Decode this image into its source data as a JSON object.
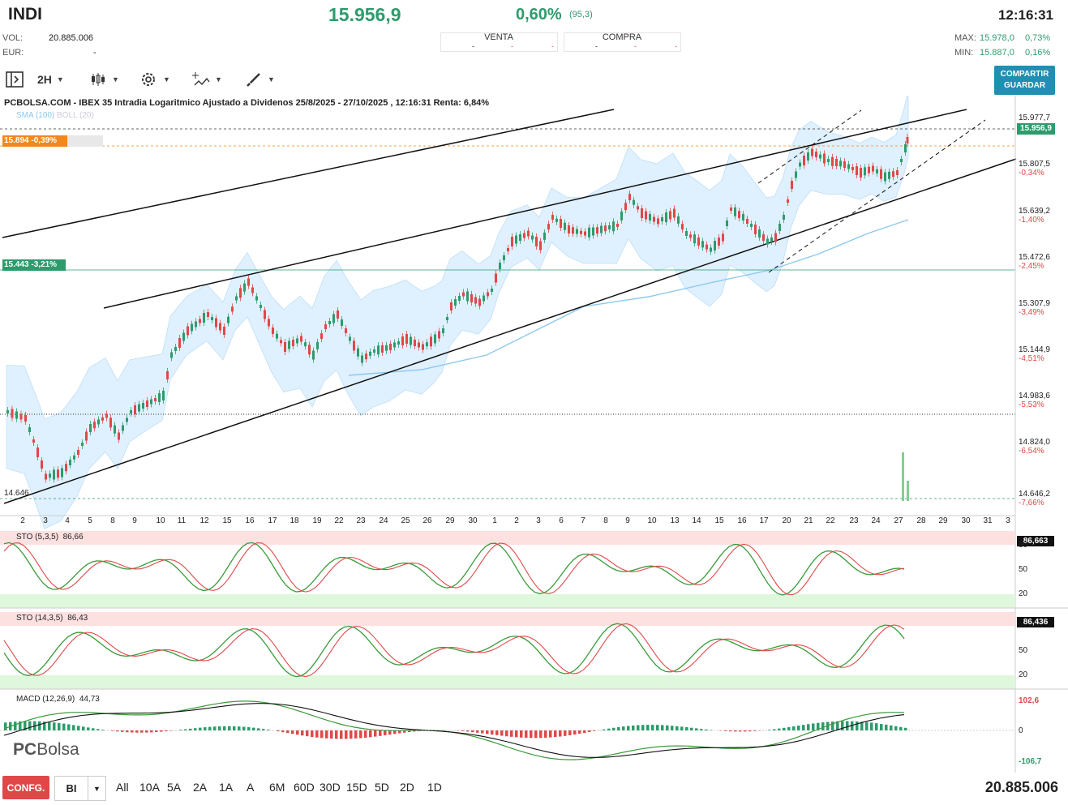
{
  "header": {
    "ticker": "INDI",
    "price": "15.956,9",
    "pct": "0,60%",
    "change": "(95,3)",
    "time": "12:16:31",
    "vol_label": "VOL:",
    "vol_value": "20.885.006",
    "eur_label": "EUR:",
    "eur_value": "-",
    "venta_label": "VENTA",
    "compra_label": "COMPRA",
    "book_dash": "-",
    "max_label": "MAX:",
    "max_value": "15.978,0",
    "max_pct": "0,73%",
    "min_label": "MIN:",
    "min_value": "15.887,0",
    "min_pct": "0,16%"
  },
  "toolbar": {
    "interval": "2H",
    "share_line1": "COMPARTIR",
    "share_line2": "GUARDAR",
    "icons": [
      "panel-toggle-icon",
      "candle-type-icon",
      "gear-icon",
      "indicators-icon",
      "drawing-tool-icon"
    ]
  },
  "chart_title": "PCBOLSA.COM - IBEX 35 Intradia Logaritmico Ajustado a Dividenos 25/8/2025 - 27/10/2025 , 12:16:31 Renta: 6,84%",
  "legend": {
    "sma": "SMA (100)",
    "boll": "BOLL (20)"
  },
  "badges": {
    "orange": "15.894  -0,39%",
    "teal": "15.443  -3,21%",
    "low": "14.646",
    "current": "15.956,9"
  },
  "price_axis": [
    {
      "v": "15.977,7",
      "p": ""
    },
    {
      "v": "15.807,5",
      "p": "-0,34%"
    },
    {
      "v": "15.639,2",
      "p": "-1,40%"
    },
    {
      "v": "15.472,6",
      "p": "-2,45%"
    },
    {
      "v": "15.307,9",
      "p": "-3,49%"
    },
    {
      "v": "15.144,9",
      "p": "-4,51%"
    },
    {
      "v": "14.983,6",
      "p": "-5,53%"
    },
    {
      "v": "14.824,0",
      "p": "-6,54%"
    },
    {
      "v": "14.646,2",
      "p": "-7,66%"
    }
  ],
  "date_axis": [
    "2",
    "3",
    "4",
    "5",
    "8",
    "9",
    "10",
    "11",
    "12",
    "15",
    "16",
    "17",
    "18",
    "19",
    "22",
    "23",
    "24",
    "25",
    "26",
    "29",
    "30",
    "1",
    "2",
    "3",
    "6",
    "7",
    "8",
    "9",
    "10",
    "13",
    "14",
    "15",
    "16",
    "17",
    "20",
    "21",
    "22",
    "23",
    "24",
    "27",
    "28",
    "29",
    "30",
    "31",
    "3"
  ],
  "sto1": {
    "label": "STO (5,3,5)",
    "value": "86,66",
    "badge": "86,663",
    "l80": "80",
    "l50": "50",
    "l20": "20"
  },
  "sto2": {
    "label": "STO (14,3,5)",
    "value": "86,43",
    "badge": "86,436",
    "l50": "50",
    "l20": "20"
  },
  "macd": {
    "label": "MACD (12,26,9)",
    "value": "44,73",
    "top": "102,6",
    "zero": "0",
    "bottom": "-106,7"
  },
  "watermark": {
    "pc": "PC",
    "bolsa": "Bolsa"
  },
  "bottom": {
    "config": "CONFG.",
    "mode": "BI",
    "periods": [
      "All",
      "10A",
      "5A",
      "2A",
      "1A",
      "A",
      "6M",
      "60D",
      "30D",
      "15D",
      "5D",
      "2D",
      "1D"
    ],
    "volume": "20.885.006"
  },
  "colors": {
    "up": "#2e9b6c",
    "down": "#e04848",
    "band": "#dcefff",
    "sma": "#8cc8ee",
    "accent": "#1f8fb3",
    "orange": "#f0881e"
  }
}
